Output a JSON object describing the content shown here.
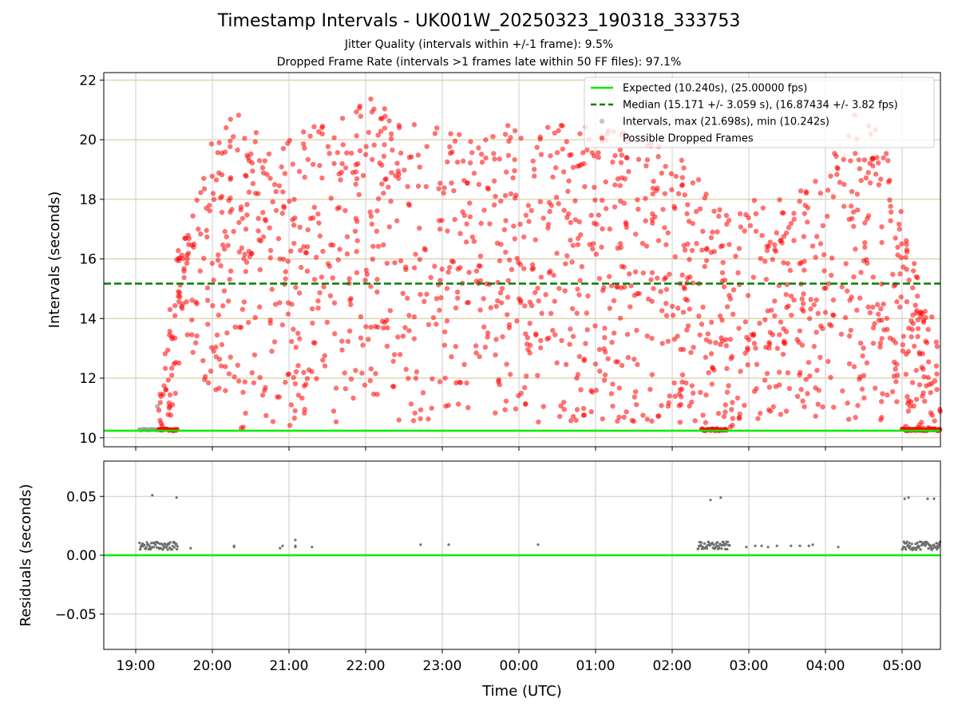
{
  "figure": {
    "title": "Timestamp Intervals - UK001W_20250323_190318_333753",
    "subtitle1": "Jitter Quality (intervals within +/-1 frame): 9.5%",
    "subtitle2": "Dropped Frame Rate (intervals >1 frames late within 50 FF files): 97.1%"
  },
  "colors": {
    "expected": "#00ee00",
    "median": "#008000",
    "intervals": "#9e9e9e",
    "dropped": "#ff0000",
    "residual_points": "#707070",
    "grid_top": "#d2c48c",
    "grid_bottom": "#c8c8c8"
  },
  "chart_data": [
    {
      "type": "scatter",
      "panel": "intervals",
      "ylabel": "Intervals (seconds)",
      "ylim": [
        9.7,
        22.25
      ],
      "yticks": [
        10,
        12,
        14,
        16,
        18,
        20,
        22
      ],
      "xlim": [
        "18:35",
        "05:30"
      ],
      "grid": true,
      "legend_position": "top-right",
      "legend": [
        {
          "key": "expected",
          "label": "Expected (10.240s), (25.00000 fps)",
          "style": "line"
        },
        {
          "key": "median",
          "label": "Median (15.171 +/- 3.059 s), (16.87434 +/- 3.82 fps)",
          "style": "dashed"
        },
        {
          "key": "intervals",
          "label": "Intervals, max (21.698s), min (10.242s)",
          "style": "point"
        },
        {
          "key": "dropped",
          "label": "Possible Dropped Frames",
          "style": "point"
        }
      ],
      "expected_interval": 10.24,
      "median_interval": 15.171,
      "max_interval": 21.698,
      "min_interval": 10.242,
      "dropped_frames_envelope": {
        "time": [
          "19:18",
          "19:30",
          "19:45",
          "20:00",
          "20:15",
          "20:30",
          "21:00",
          "21:30",
          "22:00",
          "22:30",
          "23:00",
          "23:30",
          "00:00",
          "00:30",
          "01:00",
          "01:30",
          "02:00",
          "02:20",
          "02:40",
          "03:00",
          "03:30",
          "04:00",
          "04:30",
          "04:50",
          "05:05",
          "05:20",
          "05:30"
        ],
        "min": [
          10.3,
          10.5,
          12.5,
          11.5,
          10.3,
          10.3,
          10.3,
          10.5,
          10.5,
          10.5,
          10.5,
          10.5,
          10.5,
          10.5,
          10.5,
          10.5,
          10.5,
          10.3,
          10.3,
          10.5,
          10.5,
          10.5,
          10.5,
          10.5,
          10.3,
          10.3,
          10.3
        ],
        "max": [
          11.5,
          16.5,
          17.5,
          20.3,
          21.3,
          20.5,
          20.0,
          20.8,
          21.5,
          20.8,
          20.5,
          20.5,
          20.5,
          20.5,
          20.5,
          20.5,
          19.5,
          19.0,
          17.5,
          18.0,
          18.0,
          19.0,
          21.4,
          19.8,
          16.5,
          14.5,
          13.5
        ]
      },
      "at_expected_clusters": [
        {
          "start": "19:18",
          "end": "19:33"
        },
        {
          "start": "02:23",
          "end": "02:43"
        },
        {
          "start": "05:00",
          "end": "05:30"
        }
      ],
      "non_dropped_cluster": {
        "start": "19:03",
        "end": "19:17",
        "value": 10.27
      }
    },
    {
      "type": "scatter",
      "panel": "residuals",
      "xlabel": "Time (UTC)",
      "ylabel": "Residuals (seconds)",
      "ylim": [
        -0.08,
        0.08
      ],
      "yticks": [
        -0.05,
        0.0,
        0.05
      ],
      "ytick_labels": [
        "−0.05",
        "0.00",
        "0.05"
      ],
      "xticks": [
        "19:00",
        "20:00",
        "21:00",
        "22:00",
        "23:00",
        "00:00",
        "01:00",
        "02:00",
        "03:00",
        "04:00",
        "05:00"
      ],
      "grid": true,
      "zero_line": 0,
      "clusters": [
        {
          "start": "19:03",
          "end": "19:33",
          "base": 0.008
        },
        {
          "start": "02:20",
          "end": "02:45",
          "base": 0.008
        },
        {
          "start": "05:00",
          "end": "05:30",
          "base": 0.008
        }
      ],
      "points": [
        {
          "t": "19:13",
          "v": 0.051
        },
        {
          "t": "19:32",
          "v": 0.049
        },
        {
          "t": "19:43",
          "v": 0.006
        },
        {
          "t": "20:17",
          "v": 0.007
        },
        {
          "t": "20:17",
          "v": 0.008
        },
        {
          "t": "20:53",
          "v": 0.006
        },
        {
          "t": "20:55",
          "v": 0.008
        },
        {
          "t": "21:05",
          "v": 0.013
        },
        {
          "t": "21:05",
          "v": 0.008
        },
        {
          "t": "21:05",
          "v": 0.007
        },
        {
          "t": "21:18",
          "v": 0.007
        },
        {
          "t": "22:43",
          "v": 0.009
        },
        {
          "t": "23:05",
          "v": 0.009
        },
        {
          "t": "00:15",
          "v": 0.009
        },
        {
          "t": "02:30",
          "v": 0.047
        },
        {
          "t": "02:38",
          "v": 0.049
        },
        {
          "t": "02:58",
          "v": 0.007
        },
        {
          "t": "03:05",
          "v": 0.008
        },
        {
          "t": "03:10",
          "v": 0.008
        },
        {
          "t": "03:15",
          "v": 0.007
        },
        {
          "t": "03:22",
          "v": 0.008
        },
        {
          "t": "03:33",
          "v": 0.008
        },
        {
          "t": "03:40",
          "v": 0.008
        },
        {
          "t": "03:47",
          "v": 0.008
        },
        {
          "t": "03:50",
          "v": 0.009
        },
        {
          "t": "04:10",
          "v": 0.007
        },
        {
          "t": "05:02",
          "v": 0.048
        },
        {
          "t": "05:05",
          "v": 0.049
        },
        {
          "t": "05:20",
          "v": 0.048
        },
        {
          "t": "05:25",
          "v": 0.048
        }
      ]
    }
  ]
}
